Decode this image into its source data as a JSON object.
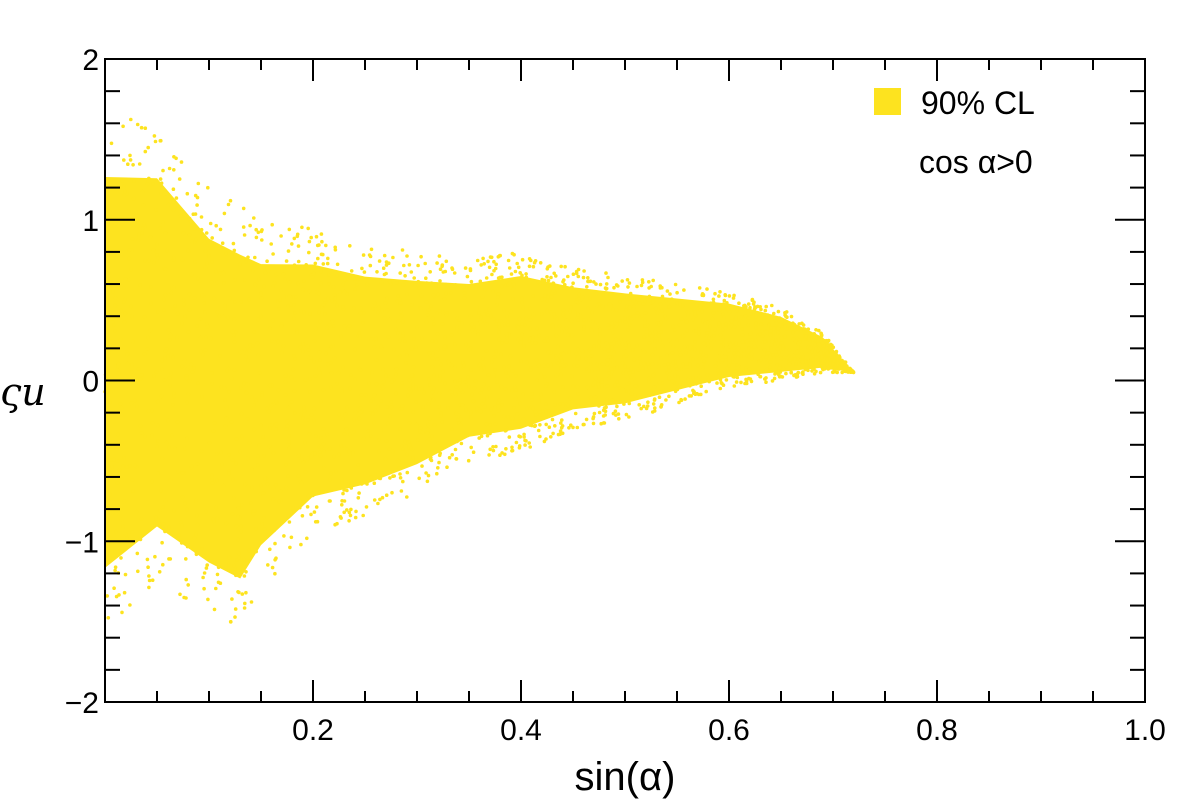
{
  "chart_data": {
    "type": "scatter",
    "xlabel": "sin(α)",
    "ylabel": "ςu",
    "xlim": [
      0.0,
      1.0
    ],
    "ylim": [
      -2,
      2
    ],
    "x_ticks": [
      0.2,
      0.4,
      0.6,
      0.8,
      1.0
    ],
    "x_tick_labels": [
      "0.2",
      "0.4",
      "0.6",
      "0.8",
      "1.0"
    ],
    "y_ticks": [
      -2,
      -1,
      0,
      1,
      2
    ],
    "y_tick_labels": [
      "−2",
      "−1",
      "0",
      "1",
      "2"
    ],
    "legend": {
      "placement": "top-right",
      "entries": [
        {
          "label": "90% CL",
          "color": "#fde31f"
        }
      ],
      "note": "cos α>0"
    },
    "series": [
      {
        "name": "90% CL",
        "color": "#fde31f",
        "region_envelope": [
          {
            "x": 0.0,
            "y_min": -1.55,
            "y_max": 1.65
          },
          {
            "x": 0.05,
            "y_min": -1.25,
            "y_max": 1.6
          },
          {
            "x": 0.1,
            "y_min": -1.45,
            "y_max": 1.2
          },
          {
            "x": 0.13,
            "y_min": -1.55,
            "y_max": 1.1
          },
          {
            "x": 0.15,
            "y_min": -1.3,
            "y_max": 1.0
          },
          {
            "x": 0.2,
            "y_min": -0.95,
            "y_max": 0.95
          },
          {
            "x": 0.25,
            "y_min": -0.85,
            "y_max": 0.85
          },
          {
            "x": 0.3,
            "y_min": -0.7,
            "y_max": 0.8
          },
          {
            "x": 0.35,
            "y_min": -0.5,
            "y_max": 0.75
          },
          {
            "x": 0.4,
            "y_min": -0.45,
            "y_max": 0.8
          },
          {
            "x": 0.45,
            "y_min": -0.3,
            "y_max": 0.7
          },
          {
            "x": 0.5,
            "y_min": -0.25,
            "y_max": 0.65
          },
          {
            "x": 0.55,
            "y_min": -0.15,
            "y_max": 0.6
          },
          {
            "x": 0.6,
            "y_min": -0.05,
            "y_max": 0.55
          },
          {
            "x": 0.65,
            "y_min": 0.0,
            "y_max": 0.45
          },
          {
            "x": 0.69,
            "y_min": 0.05,
            "y_max": 0.3
          },
          {
            "x": 0.72,
            "y_min": 0.05,
            "y_max": 0.05
          }
        ]
      }
    ],
    "grid": false
  }
}
